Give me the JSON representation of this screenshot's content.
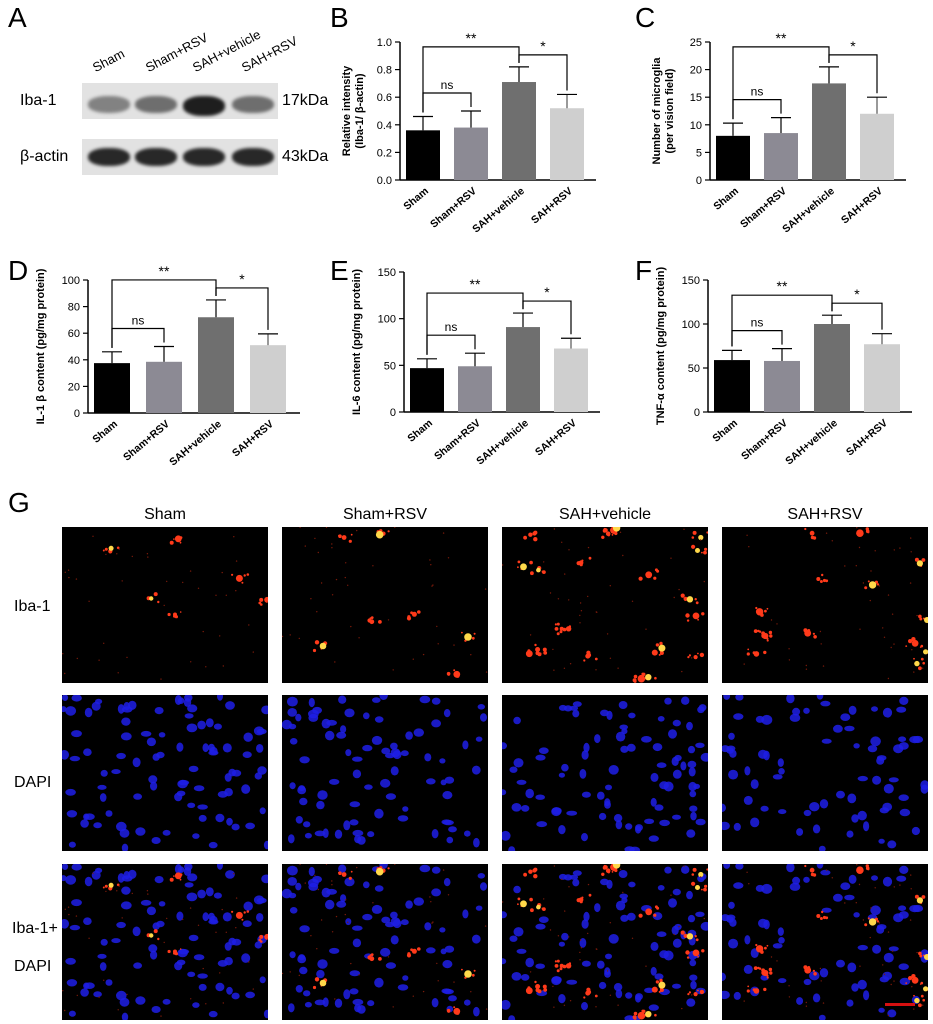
{
  "panel_letters": {
    "A": "A",
    "B": "B",
    "C": "C",
    "D": "D",
    "E": "E",
    "F": "F",
    "G": "G"
  },
  "western_blot": {
    "lanes": [
      "Sham",
      "Sham+RSV",
      "SAH+vehicle",
      "SAH+RSV"
    ],
    "rows": [
      {
        "protein": "Iba-1",
        "size": "17kDa",
        "band_intensity": [
          0.45,
          0.55,
          0.95,
          0.55
        ]
      },
      {
        "protein": "β-actin",
        "size": "43kDa",
        "band_intensity": [
          0.9,
          0.9,
          0.9,
          0.9
        ]
      }
    ]
  },
  "chart_data": [
    {
      "id": "B",
      "type": "bar",
      "categories": [
        "Sham",
        "Sham+RSV",
        "SAH+vehicle",
        "SAH+RSV"
      ],
      "values": [
        0.36,
        0.38,
        0.71,
        0.52
      ],
      "errors": [
        0.1,
        0.12,
        0.11,
        0.1
      ],
      "ylabel": "Relative intensity\n(Iba-1/ β-actin)",
      "ylim": [
        0,
        1.0
      ],
      "yticks": [
        "0.0",
        "0.2",
        "0.4",
        "0.6",
        "0.8",
        "1.0"
      ],
      "ytick_values": [
        0,
        0.2,
        0.4,
        0.6,
        0.8,
        1.0
      ],
      "colors": [
        "#000000",
        "#8c8a94",
        "#6f6f6f",
        "#cfcfcf"
      ],
      "brackets": [
        {
          "from": 0,
          "to": 1,
          "label": "ns"
        },
        {
          "from": 0,
          "to": 2,
          "label": "**"
        },
        {
          "from": 2,
          "to": 3,
          "label": "*"
        }
      ]
    },
    {
      "id": "C",
      "type": "bar",
      "categories": [
        "Sham",
        "Sham+RSV",
        "SAH+vehicle",
        "SAH+RSV"
      ],
      "values": [
        8.0,
        8.5,
        17.5,
        12.0
      ],
      "errors": [
        2.3,
        2.8,
        3.0,
        3.0
      ],
      "ylabel": "Number of microglia\n(per vision field)",
      "ylim": [
        0,
        25
      ],
      "yticks": [
        "0",
        "5",
        "10",
        "15",
        "20",
        "25"
      ],
      "ytick_values": [
        0,
        5,
        10,
        15,
        20,
        25
      ],
      "colors": [
        "#000000",
        "#8c8a94",
        "#6f6f6f",
        "#cfcfcf"
      ],
      "brackets": [
        {
          "from": 0,
          "to": 1,
          "label": "ns"
        },
        {
          "from": 0,
          "to": 2,
          "label": "**"
        },
        {
          "from": 2,
          "to": 3,
          "label": "*"
        }
      ]
    },
    {
      "id": "D",
      "type": "bar",
      "categories": [
        "Sham",
        "Sham+RSV",
        "SAH+vehicle",
        "SAH+RSV"
      ],
      "values": [
        37.5,
        38.5,
        72,
        51
      ],
      "errors": [
        8.5,
        11.5,
        13,
        8.5
      ],
      "ylabel": "IL-1 β content  (pg/mg protein)",
      "ylim": [
        0,
        100
      ],
      "yticks": [
        "0",
        "20",
        "40",
        "60",
        "80",
        "100"
      ],
      "ytick_values": [
        0,
        20,
        40,
        60,
        80,
        100
      ],
      "colors": [
        "#000000",
        "#8c8a94",
        "#6f6f6f",
        "#cfcfcf"
      ],
      "brackets": [
        {
          "from": 0,
          "to": 1,
          "label": "ns"
        },
        {
          "from": 0,
          "to": 2,
          "label": "**"
        },
        {
          "from": 2,
          "to": 3,
          "label": "*"
        }
      ]
    },
    {
      "id": "E",
      "type": "bar",
      "categories": [
        "Sham",
        "Sham+RSV",
        "SAH+vehicle",
        "SAH+RSV"
      ],
      "values": [
        47,
        49,
        91,
        68
      ],
      "errors": [
        10,
        14,
        15,
        11
      ],
      "ylabel": "IL-6 content  (pg/mg protein)",
      "ylim": [
        0,
        150
      ],
      "yticks": [
        "0",
        "50",
        "100",
        "150"
      ],
      "ytick_values": [
        0,
        50,
        100,
        150
      ],
      "colors": [
        "#000000",
        "#8c8a94",
        "#6f6f6f",
        "#cfcfcf"
      ],
      "brackets": [
        {
          "from": 0,
          "to": 1,
          "label": "ns"
        },
        {
          "from": 0,
          "to": 2,
          "label": "**"
        },
        {
          "from": 2,
          "to": 3,
          "label": "*"
        }
      ]
    },
    {
      "id": "F",
      "type": "bar",
      "categories": [
        "Sham",
        "Sham+RSV",
        "SAH+vehicle",
        "SAH+RSV"
      ],
      "values": [
        59,
        58,
        100,
        77
      ],
      "errors": [
        11,
        14,
        10,
        12
      ],
      "ylabel": "TNF-α content (pg/mg protein)",
      "ylim": [
        0,
        150
      ],
      "yticks": [
        "0",
        "50",
        "100",
        "150"
      ],
      "ytick_values": [
        0,
        50,
        100,
        150
      ],
      "colors": [
        "#000000",
        "#8c8a94",
        "#6f6f6f",
        "#cfcfcf"
      ],
      "brackets": [
        {
          "from": 0,
          "to": 1,
          "label": "ns"
        },
        {
          "from": 0,
          "to": 2,
          "label": "**"
        },
        {
          "from": 2,
          "to": 3,
          "label": "*"
        }
      ]
    }
  ],
  "microscopy": {
    "columns": [
      "Sham",
      "Sham+RSV",
      "SAH+vehicle",
      "SAH+RSV"
    ],
    "rows": [
      {
        "label": "Iba-1",
        "channel": "red",
        "red_cells": [
          6,
          7,
          22,
          14
        ],
        "blue_cells": [
          0,
          0,
          0,
          0
        ]
      },
      {
        "label": "DAPI",
        "channel": "blue",
        "red_cells": [
          0,
          0,
          0,
          0
        ],
        "blue_cells": [
          95,
          85,
          90,
          75
        ]
      },
      {
        "label_line1": "Iba-1+",
        "label_line2": "DAPI",
        "channel": "merge",
        "red_cells": [
          6,
          7,
          22,
          14
        ],
        "blue_cells": [
          95,
          85,
          90,
          75
        ]
      }
    ],
    "colors": {
      "red": "#ff3a1a",
      "yellow": "#ffd84a",
      "blue": "#1f1fe6",
      "background": "#000000",
      "scale_bar": "#d61010"
    }
  }
}
